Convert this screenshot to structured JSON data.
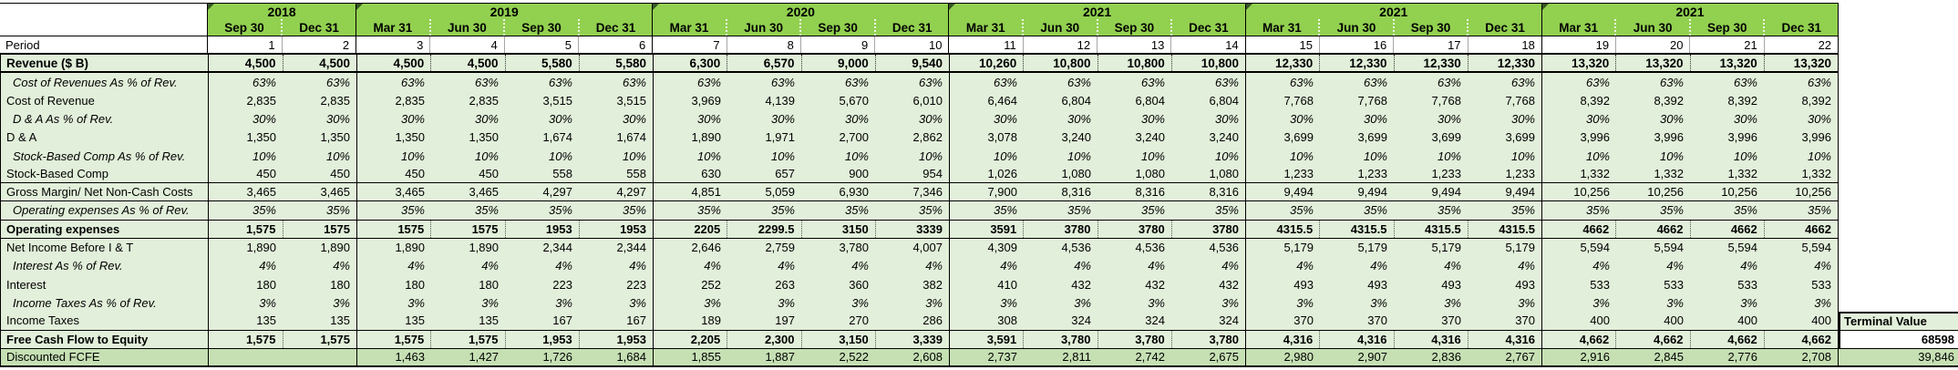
{
  "colors": {
    "header_green": "#92d050",
    "row_light_green": "#e2efda",
    "discounted_green": "#c6e0b4",
    "merge_flag_green": "#375623"
  },
  "table": {
    "year_groups": [
      {
        "year": "2018",
        "quarters": [
          "Sep 30",
          "Dec 31"
        ]
      },
      {
        "year": "2019",
        "quarters": [
          "Mar 31",
          "Jun 30",
          "Sep 30",
          "Dec 31"
        ]
      },
      {
        "year": "2020",
        "quarters": [
          "Mar 31",
          "Jun 30",
          "Sep 30",
          "Dec 31"
        ]
      },
      {
        "year": "2021",
        "quarters": [
          "Mar 31",
          "Jun 30",
          "Sep 30",
          "Dec 31"
        ]
      },
      {
        "year": "2021",
        "quarters": [
          "Mar 31",
          "Jun 30",
          "Sep 30",
          "Dec 31"
        ]
      },
      {
        "year": "2021",
        "quarters": [
          "Mar 31",
          "Jun 30",
          "Sep 30",
          "Dec 31"
        ]
      }
    ],
    "rows": [
      {
        "label": "Period",
        "cls": "period",
        "vals": [
          "1",
          "2",
          "3",
          "4",
          "5",
          "6",
          "7",
          "8",
          "9",
          "10",
          "11",
          "12",
          "13",
          "14",
          "15",
          "16",
          "17",
          "18",
          "19",
          "20",
          "21",
          "22"
        ]
      },
      {
        "label": "Revenue ($ B)",
        "cls": "revenue",
        "vals": [
          "4,500",
          "4,500",
          "4,500",
          "4,500",
          "5,580",
          "5,580",
          "6,300",
          "6,570",
          "9,000",
          "9,540",
          "10,260",
          "10,800",
          "10,800",
          "10,800",
          "12,330",
          "12,330",
          "12,330",
          "12,330",
          "13,320",
          "13,320",
          "13,320",
          "13,320"
        ]
      },
      {
        "label": "Cost of Revenues As % of Rev.",
        "cls": "pct",
        "vals": [
          "63%",
          "63%",
          "63%",
          "63%",
          "63%",
          "63%",
          "63%",
          "63%",
          "63%",
          "63%",
          "63%",
          "63%",
          "63%",
          "63%",
          "63%",
          "63%",
          "63%",
          "63%",
          "63%",
          "63%",
          "63%",
          "63%"
        ]
      },
      {
        "label": "Cost of Revenue",
        "cls": "plain",
        "vals": [
          "2,835",
          "2,835",
          "2,835",
          "2,835",
          "3,515",
          "3,515",
          "3,969",
          "4,139",
          "5,670",
          "6,010",
          "6,464",
          "6,804",
          "6,804",
          "6,804",
          "7,768",
          "7,768",
          "7,768",
          "7,768",
          "8,392",
          "8,392",
          "8,392",
          "8,392"
        ]
      },
      {
        "label": "D & A As % of Rev.",
        "cls": "pct",
        "vals": [
          "30%",
          "30%",
          "30%",
          "30%",
          "30%",
          "30%",
          "30%",
          "30%",
          "30%",
          "30%",
          "30%",
          "30%",
          "30%",
          "30%",
          "30%",
          "30%",
          "30%",
          "30%",
          "30%",
          "30%",
          "30%",
          "30%"
        ]
      },
      {
        "label": "D & A",
        "cls": "plain",
        "vals": [
          "1,350",
          "1,350",
          "1,350",
          "1,350",
          "1,674",
          "1,674",
          "1,890",
          "1,971",
          "2,700",
          "2,862",
          "3,078",
          "3,240",
          "3,240",
          "3,240",
          "3,699",
          "3,699",
          "3,699",
          "3,699",
          "3,996",
          "3,996",
          "3,996",
          "3,996"
        ]
      },
      {
        "label": "Stock-Based Comp As % of Rev.",
        "cls": "pct",
        "vals": [
          "10%",
          "10%",
          "10%",
          "10%",
          "10%",
          "10%",
          "10%",
          "10%",
          "10%",
          "10%",
          "10%",
          "10%",
          "10%",
          "10%",
          "10%",
          "10%",
          "10%",
          "10%",
          "10%",
          "10%",
          "10%",
          "10%"
        ]
      },
      {
        "label": "Stock-Based Comp",
        "cls": "plain hline",
        "vals": [
          "450",
          "450",
          "450",
          "450",
          "558",
          "558",
          "630",
          "657",
          "900",
          "954",
          "1,026",
          "1,080",
          "1,080",
          "1,080",
          "1,233",
          "1,233",
          "1,233",
          "1,233",
          "1,332",
          "1,332",
          "1,332",
          "1,332"
        ]
      },
      {
        "label": "Gross Margin/ Net Non-Cash Costs",
        "cls": "plain hline",
        "vals": [
          "3,465",
          "3,465",
          "3,465",
          "3,465",
          "4,297",
          "4,297",
          "4,851",
          "5,059",
          "6,930",
          "7,346",
          "7,900",
          "8,316",
          "8,316",
          "8,316",
          "9,494",
          "9,494",
          "9,494",
          "9,494",
          "10,256",
          "10,256",
          "10,256",
          "10,256"
        ]
      },
      {
        "label": "Operating expenses As % of Rev.",
        "cls": "pct hline",
        "vals": [
          "35%",
          "35%",
          "35%",
          "35%",
          "35%",
          "35%",
          "35%",
          "35%",
          "35%",
          "35%",
          "35%",
          "35%",
          "35%",
          "35%",
          "35%",
          "35%",
          "35%",
          "35%",
          "35%",
          "35%",
          "35%",
          "35%"
        ]
      },
      {
        "label": "Operating expenses",
        "cls": "opex hline",
        "vals": [
          "1,575",
          "1575",
          "1575",
          "1575",
          "1953",
          "1953",
          "2205",
          "2299.5",
          "3150",
          "3339",
          "3591",
          "3780",
          "3780",
          "3780",
          "4315.5",
          "4315.5",
          "4315.5",
          "4315.5",
          "4662",
          "4662",
          "4662",
          "4662"
        ]
      },
      {
        "label": "Net Income Before I & T",
        "cls": "plain",
        "vals": [
          "1,890",
          "1,890",
          "1,890",
          "1,890",
          "2,344",
          "2,344",
          "2,646",
          "2,759",
          "3,780",
          "4,007",
          "4,309",
          "4,536",
          "4,536",
          "4,536",
          "5,179",
          "5,179",
          "5,179",
          "5,179",
          "5,594",
          "5,594",
          "5,594",
          "5,594"
        ]
      },
      {
        "label": "Interest As % of Rev.",
        "cls": "pct",
        "vals": [
          "4%",
          "4%",
          "4%",
          "4%",
          "4%",
          "4%",
          "4%",
          "4%",
          "4%",
          "4%",
          "4%",
          "4%",
          "4%",
          "4%",
          "4%",
          "4%",
          "4%",
          "4%",
          "4%",
          "4%",
          "4%",
          "4%"
        ]
      },
      {
        "label": "Interest",
        "cls": "plain",
        "vals": [
          "180",
          "180",
          "180",
          "180",
          "223",
          "223",
          "252",
          "263",
          "360",
          "382",
          "410",
          "432",
          "432",
          "432",
          "493",
          "493",
          "493",
          "493",
          "533",
          "533",
          "533",
          "533"
        ]
      },
      {
        "label": "Income Taxes As % of Rev.",
        "cls": "pct",
        "vals": [
          "3%",
          "3%",
          "3%",
          "3%",
          "3%",
          "3%",
          "3%",
          "3%",
          "3%",
          "3%",
          "3%",
          "3%",
          "3%",
          "3%",
          "3%",
          "3%",
          "3%",
          "3%",
          "3%",
          "3%",
          "3%",
          "3%"
        ]
      },
      {
        "label": "Income Taxes",
        "cls": "plain hline",
        "vals": [
          "135",
          "135",
          "135",
          "135",
          "167",
          "167",
          "189",
          "197",
          "270",
          "286",
          "308",
          "324",
          "324",
          "324",
          "370",
          "370",
          "370",
          "370",
          "400",
          "400",
          "400",
          "400"
        ],
        "tv": "Terminal Value",
        "tvcls": "tv-label"
      },
      {
        "label": "Free Cash Flow to Equity",
        "cls": "fcfe hline",
        "vals": [
          "1,575",
          "1,575",
          "1,575",
          "1,575",
          "1,953",
          "1,953",
          "2,205",
          "2,300",
          "3,150",
          "3,339",
          "3,591",
          "3,780",
          "3,780",
          "3,780",
          "4,316",
          "4,316",
          "4,316",
          "4,316",
          "4,662",
          "4,662",
          "4,662",
          "4,662"
        ],
        "tv": "68598",
        "tvcls": "tv-value"
      },
      {
        "label": "Discounted FCFE",
        "cls": "disc",
        "vals": [
          "",
          "",
          "1,463",
          "1,427",
          "1,726",
          "1,684",
          "1,855",
          "1,887",
          "2,522",
          "2,608",
          "2,737",
          "2,811",
          "2,742",
          "2,675",
          "2,980",
          "2,907",
          "2,836",
          "2,767",
          "2,916",
          "2,845",
          "2,776",
          "2,708"
        ],
        "tv": "39,846",
        "tvcls": "tv-disc"
      }
    ]
  }
}
